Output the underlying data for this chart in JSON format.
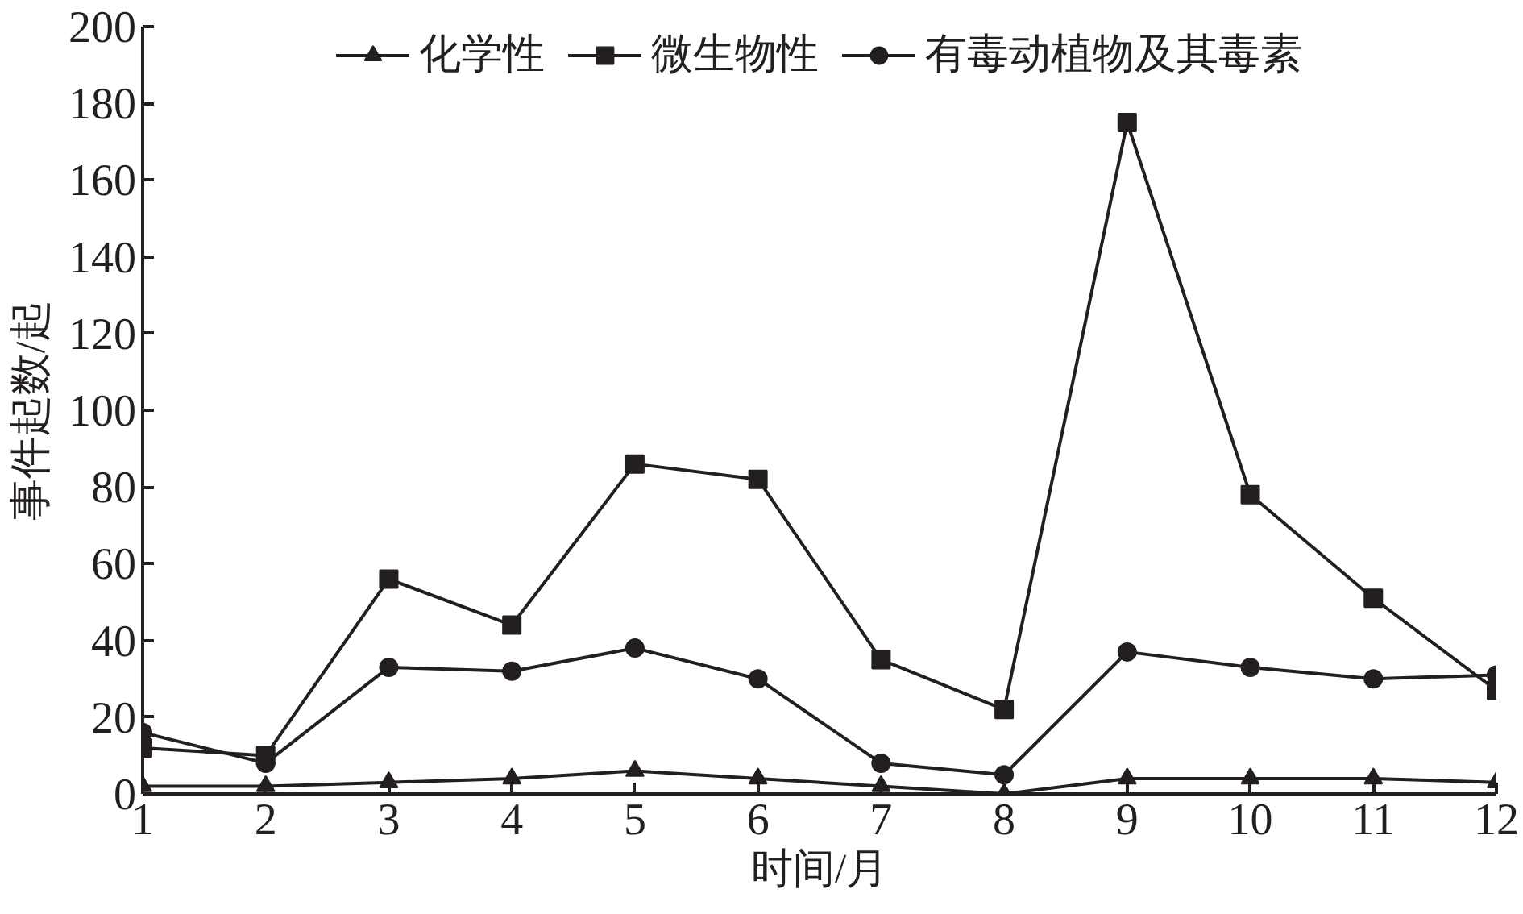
{
  "chart_data": {
    "type": "line",
    "x": [
      1,
      2,
      3,
      4,
      5,
      6,
      7,
      8,
      9,
      10,
      11,
      12
    ],
    "xlabel": "时间/月",
    "ylabel": "事件起数/起",
    "xlim": [
      1,
      12
    ],
    "xticks": [
      1,
      2,
      3,
      4,
      5,
      6,
      7,
      8,
      9,
      10,
      11,
      12
    ],
    "ylim": [
      0,
      200
    ],
    "yticks": [
      0,
      20,
      40,
      60,
      80,
      100,
      120,
      140,
      160,
      180,
      200
    ],
    "legend": "top",
    "series": [
      {
        "name": "化学性",
        "color": "#231f20",
        "marker": "triangle",
        "values": [
          2,
          2,
          3,
          4,
          6,
          4,
          2,
          0,
          4,
          4,
          4,
          3
        ]
      },
      {
        "name": "微生物性",
        "color": "#231f20",
        "marker": "square",
        "values": [
          12,
          10,
          56,
          44,
          86,
          82,
          35,
          22,
          175,
          78,
          51,
          27
        ]
      },
      {
        "name": "有毒动植物及其毒素",
        "color": "#231f20",
        "marker": "circle",
        "values": [
          16,
          8,
          33,
          32,
          38,
          30,
          8,
          5,
          37,
          33,
          30,
          31
        ]
      }
    ]
  }
}
